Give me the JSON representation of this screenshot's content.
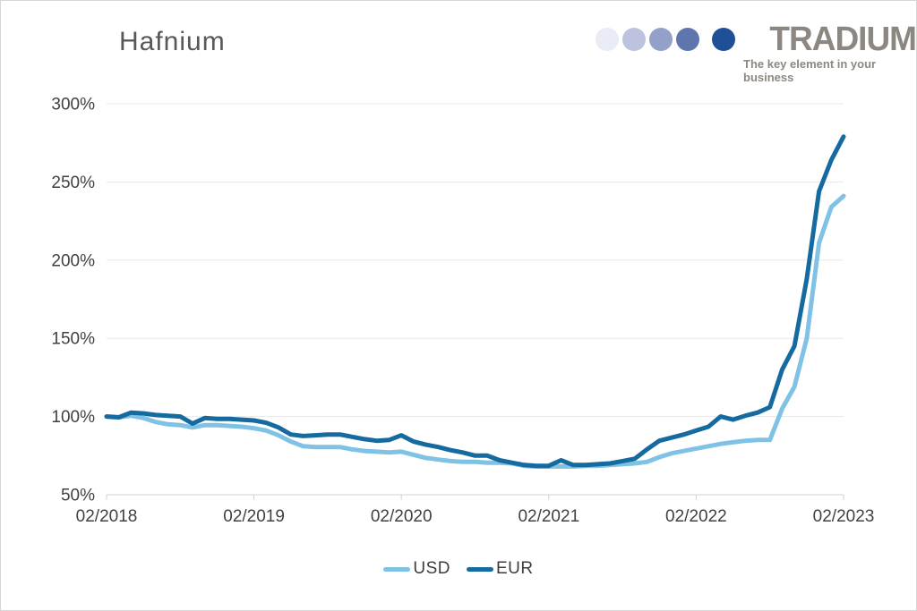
{
  "title": "Hafnium",
  "logo": {
    "wordmark": "TRADIUM",
    "tagline": "The key element in your business",
    "text_color": "#8d8781",
    "dot_colors": [
      "#e9ebf5",
      "#bdc3df",
      "#93a0c8",
      "#5e76ad",
      "#1f4f97"
    ]
  },
  "chart_data": {
    "type": "line",
    "title": "Hafnium",
    "xlabel": "",
    "ylabel": "",
    "x_start": "02/2018",
    "x_interval": "1 month",
    "x_tick_labels": [
      "02/2018",
      "02/2019",
      "02/2020",
      "02/2021",
      "02/2022",
      "02/2023"
    ],
    "x_tick_month_index": [
      0,
      12,
      24,
      36,
      48,
      60
    ],
    "y_ticks": [
      50,
      100,
      150,
      200,
      250,
      300
    ],
    "y_tick_suffix": "%",
    "ylim": [
      50,
      300
    ],
    "grid": true,
    "legend_position": "bottom-center",
    "axis_label_color": "#414141",
    "grid_color": "#e8e8e8",
    "axis_line_color": "#d2d2d2",
    "series": [
      {
        "name": "USD",
        "color": "#7fc2e5",
        "values": [
          100,
          99.5,
          100.5,
          99,
          96.5,
          95,
          94.5,
          93,
          94.5,
          94.5,
          94,
          93.5,
          92.5,
          91,
          88,
          84,
          81,
          80.5,
          80.5,
          80.5,
          79,
          78,
          77.5,
          77,
          77.5,
          75.5,
          73.5,
          72.5,
          71.5,
          71,
          71,
          70.5,
          70.5,
          70,
          68.5,
          68,
          68,
          68,
          68,
          68.5,
          68.5,
          69,
          69.5,
          70,
          71,
          74,
          76.5,
          78,
          79.5,
          81,
          82.5,
          83.5,
          84.5,
          85,
          85,
          105,
          119,
          150,
          211,
          234,
          241
        ]
      },
      {
        "name": "EUR",
        "color": "#156a9f",
        "values": [
          100,
          99.5,
          102.5,
          102,
          101,
          100.5,
          100,
          95.5,
          99,
          98.5,
          98.5,
          98,
          97.5,
          96,
          93,
          88.5,
          87.5,
          88,
          88.5,
          88.5,
          87,
          85.5,
          84.5,
          85,
          88,
          84,
          82,
          80.5,
          78.5,
          77,
          75,
          75,
          72,
          70.5,
          69,
          68.5,
          68.5,
          72,
          69,
          69,
          69.5,
          70,
          71.5,
          73,
          79,
          84.5,
          86.5,
          88.5,
          91,
          93.5,
          100,
          98,
          100.5,
          102.5,
          106,
          130,
          145,
          188,
          244,
          264,
          279
        ]
      }
    ]
  }
}
